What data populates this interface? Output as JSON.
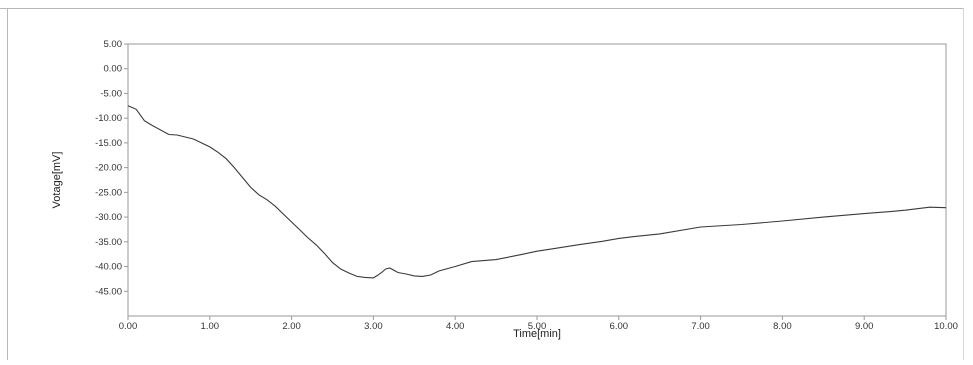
{
  "chart_data": {
    "type": "line",
    "title": "",
    "xlabel": "Time[min]",
    "ylabel": "Votage[mV]",
    "xlim": [
      0,
      10
    ],
    "ylim": [
      -50,
      5
    ],
    "grid": false,
    "legend": "none",
    "x_ticks": [
      "0.00",
      "1.00",
      "2.00",
      "3.00",
      "4.00",
      "5.00",
      "6.00",
      "7.00",
      "8.00",
      "9.00",
      "10.00"
    ],
    "y_ticks": [
      "5.00",
      "0.00",
      "-5.00",
      "-10.00",
      "-15.00",
      "-20.00",
      "-25.00",
      "-30.00",
      "-35.00",
      "-40.00",
      "-45.00"
    ],
    "line_color": "#3a3a3a",
    "series": [
      {
        "x": [
          0,
          0.1,
          0.2,
          0.3,
          0.5,
          0.6,
          0.7,
          0.8,
          1.0,
          1.1,
          1.2,
          1.3,
          1.4,
          1.5,
          1.6,
          1.7,
          1.8,
          1.9,
          2.0,
          2.1,
          2.2,
          2.3,
          2.4,
          2.5,
          2.6,
          2.7,
          2.8,
          2.9,
          3.0,
          3.05,
          3.1,
          3.15,
          3.2,
          3.3,
          3.4,
          3.5,
          3.6,
          3.7,
          3.8,
          4.0,
          4.2,
          4.5,
          4.8,
          5.0,
          5.2,
          5.5,
          5.8,
          6.0,
          6.2,
          6.5,
          7.0,
          7.5,
          8.0,
          8.5,
          9.0,
          9.3,
          9.5,
          9.7,
          9.8,
          10.0
        ],
        "y": [
          -7.5,
          -8.2,
          -10.5,
          -11.5,
          -13.3,
          -13.4,
          -13.8,
          -14.2,
          -15.8,
          -16.9,
          -18.2,
          -20.0,
          -22.0,
          -24.0,
          -25.5,
          -26.5,
          -27.8,
          -29.4,
          -31.0,
          -32.6,
          -34.2,
          -35.6,
          -37.3,
          -39.2,
          -40.5,
          -41.3,
          -42.0,
          -42.2,
          -42.3,
          -41.8,
          -41.2,
          -40.5,
          -40.3,
          -41.2,
          -41.5,
          -41.9,
          -42.0,
          -41.7,
          -40.9,
          -40.0,
          -39.0,
          -38.6,
          -37.6,
          -36.9,
          -36.4,
          -35.6,
          -34.9,
          -34.3,
          -33.9,
          -33.4,
          -32.0,
          -31.5,
          -30.8,
          -30.0,
          -29.3,
          -28.9,
          -28.6,
          -28.2,
          -28.0,
          -28.1
        ]
      }
    ]
  }
}
